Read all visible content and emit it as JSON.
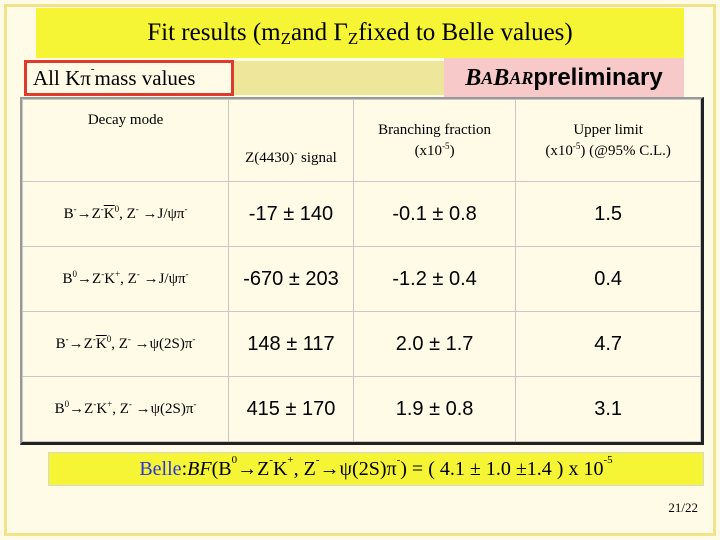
{
  "title": {
    "pre": "Fit results (m",
    "mz_sub": "Z",
    "mid": " and Γ",
    "gz_sub": "Z",
    "post": " fixed to Belle values)"
  },
  "badge_all": {
    "pre": "All Kπ",
    "sup": "-",
    "post": " mass values"
  },
  "babar": {
    "b1": "B",
    "a1": "A",
    "b2": "B",
    "ar": "AR",
    "rest": " preliminary"
  },
  "headers": {
    "decay_mode": "Decay mode",
    "z_signal_pre": "Z(4430)",
    "z_signal_sup": "-",
    "z_signal_post": " signal",
    "bf_line1": "Branching fraction",
    "bf_line2_pre": "(x10",
    "bf_line2_sup": "-5",
    "bf_line2_post": ")",
    "ul_line1": "Upper limit",
    "ul_line2_pre": "(x10",
    "ul_line2_sup": "-5",
    "ul_line2_post": ") (@95% C.L.)"
  },
  "rows": [
    {
      "mode": {
        "a": "B",
        "a_sup": "-",
        "b": "→Z",
        "b_sup": "-",
        "kbar": "K",
        "k_sup": "0",
        "c": ", Z",
        "c_sup": "-",
        "d": " →J/ψπ",
        "d_sup": "-"
      },
      "signal": "-17 ± 140",
      "bf": "-0.1 ± 0.8",
      "ul": "1.5"
    },
    {
      "mode": {
        "a": "B",
        "a_sup": "0",
        "b": "→Z",
        "b_sup": "-",
        "k": "K",
        "k_sup": "+",
        "c": ", Z",
        "c_sup": "-",
        "d": " →J/ψπ",
        "d_sup": "-"
      },
      "signal": "-670 ± 203",
      "bf": "-1.2 ± 0.4",
      "ul": "0.4"
    },
    {
      "mode": {
        "a": "B",
        "a_sup": "-",
        "b": "→Z",
        "b_sup": "-",
        "kbar": "K",
        "k_sup": "0",
        "c": ", Z",
        "c_sup": "-",
        "d": " →ψ(2S)π",
        "d_sup": "-"
      },
      "signal": "148 ± 117",
      "bf": "2.0 ± 1.7",
      "ul": "4.7"
    },
    {
      "mode": {
        "a": "B",
        "a_sup": "0",
        "b": "→Z",
        "b_sup": "-",
        "k": "K",
        "k_sup": "+",
        "c": ", Z",
        "c_sup": "-",
        "d": " →ψ(2S)π",
        "d_sup": "-"
      },
      "signal": "415 ± 170",
      "bf": "1.9 ± 0.8",
      "ul": "3.1"
    }
  ],
  "footer": {
    "belle": "Belle",
    "colon": ": ",
    "bf": "BF",
    "p1": "(B",
    "p1_sup": "0",
    "p2": "→Z",
    "p2_sup": "-",
    "p3": "K",
    "p3_sup": "+",
    "p4": ", Z",
    "p4_sup": "-",
    "p5": " →ψ(2S)π",
    "p5_sup": "-",
    "p6": ") = ( 4.1 ± 1.0 ±1.4 ) x 10",
    "p6_sup": "-5"
  },
  "page_number": "21/22"
}
